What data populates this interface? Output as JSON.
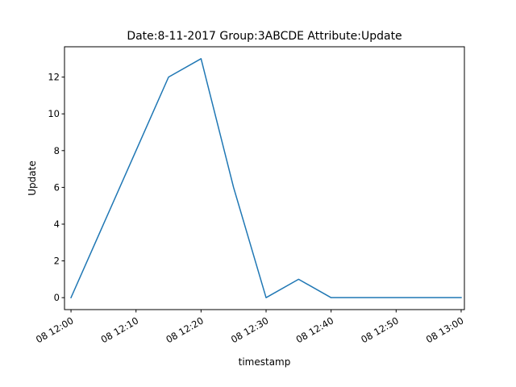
{
  "chart_data": {
    "type": "line",
    "title": "Date:8-11-2017  Group:3ABCDE Attribute:Update",
    "xlabel": "timestamp",
    "ylabel": "Update",
    "x": [
      "12:00",
      "12:05",
      "12:10",
      "12:15",
      "12:20",
      "12:25",
      "12:30",
      "12:35",
      "12:40",
      "12:45",
      "12:50",
      "12:55",
      "13:00"
    ],
    "series": [
      {
        "values": [
          0,
          4,
          8,
          12,
          13,
          6,
          0,
          1,
          0,
          0,
          0,
          0,
          0
        ],
        "color": "#1f77b4"
      }
    ],
    "xlim": [
      "11:59",
      "13:00.5"
    ],
    "ylim": [
      -0.65,
      13.65
    ],
    "x_ticks": [
      {
        "label": "08 12:00",
        "time": "12:00"
      },
      {
        "label": "08 12:10",
        "time": "12:10"
      },
      {
        "label": "08 12:20",
        "time": "12:20"
      },
      {
        "label": "08 12:30",
        "time": "12:30"
      },
      {
        "label": "08 12:40",
        "time": "12:40"
      },
      {
        "label": "08 12:50",
        "time": "12:50"
      },
      {
        "label": "08 13:00",
        "time": "13:00"
      }
    ],
    "y_ticks": [
      0,
      2,
      4,
      6,
      8,
      10,
      12
    ],
    "grid": false
  }
}
